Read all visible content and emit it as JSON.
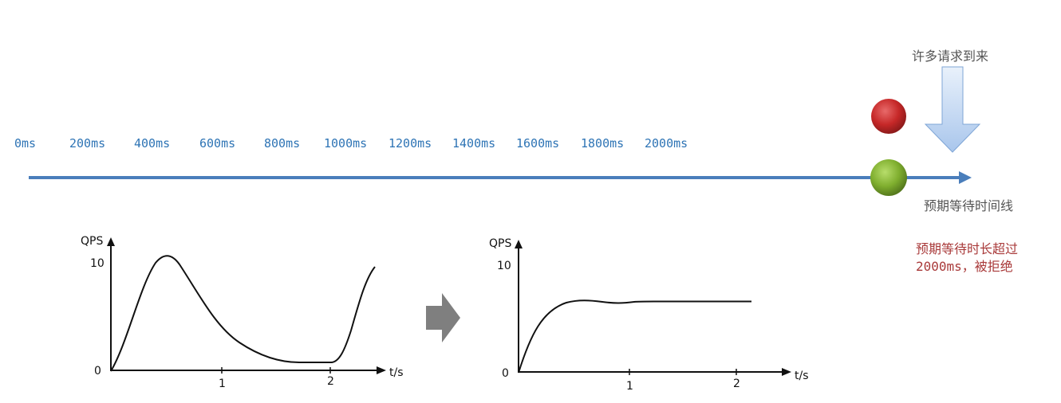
{
  "timeline": {
    "labels": [
      "0ms",
      "200ms",
      "400ms",
      "600ms",
      "800ms",
      "1000ms",
      "1200ms",
      "1400ms",
      "1600ms",
      "1800ms",
      "2000ms"
    ],
    "axis_color": "#4a7ebb",
    "label_color": "#2e74b5"
  },
  "incoming": {
    "label": "许多请求到来"
  },
  "expected_wait_label": "预期等待时间线",
  "reject_note": {
    "line1": "预期等待时长超过",
    "line2": "2000ms，被拒绝",
    "color": "#a93a3a"
  },
  "balls": {
    "red": "#c62828",
    "green": "#7fae2e"
  },
  "charts": {
    "left": {
      "y_label": "QPS",
      "x_label": "t/s",
      "y_ticks": [
        "10",
        "0"
      ],
      "x_ticks": [
        "1",
        "2"
      ]
    },
    "right": {
      "y_label": "QPS",
      "x_label": "t/s",
      "y_ticks": [
        "10",
        "0"
      ],
      "x_ticks": [
        "1",
        "2"
      ]
    }
  },
  "transform_arrow_color": "#7f7f7f"
}
